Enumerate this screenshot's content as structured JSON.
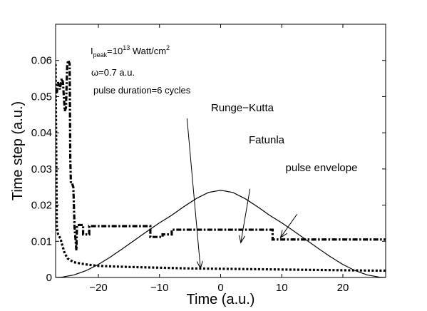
{
  "chart_data": {
    "type": "line",
    "xlabel": "Time (a.u.)",
    "ylabel": "Time step (a.u.)",
    "xlim": [
      -27,
      27
    ],
    "ylim": [
      0,
      0.07
    ],
    "xticks": [
      -20,
      -10,
      0,
      10,
      20
    ],
    "xtick_labels": [
      "−20",
      "−10",
      "0",
      "10",
      "20"
    ],
    "yticks": [
      0,
      0.01,
      0.02,
      0.03,
      0.04,
      0.05,
      0.06
    ],
    "ytick_labels": [
      "0",
      "0.01",
      "0.02",
      "0.03",
      "0.04",
      "0.05",
      "0.06"
    ],
    "grid": false,
    "annotations": {
      "intensity_prefix": "I",
      "intensity_sub": "peak",
      "intensity_eq": "=10",
      "intensity_exp": "13",
      "intensity_unit": " Watt/cm",
      "intensity_unit_exp": "2",
      "omega": "ω=0.7 a.u.",
      "duration": "pulse duration=6 cycles",
      "label_rk": "Runge−Kutta",
      "label_fatunla": "Fatunla",
      "label_envelope": "pulse envelope"
    },
    "arrows": [
      {
        "from": [
          -5.5,
          0.044
        ],
        "to": [
          -3.3,
          0.0025
        ]
      },
      {
        "from": [
          4.8,
          0.0245
        ],
        "to": [
          3.3,
          0.0096
        ]
      },
      {
        "from": [
          12.5,
          0.0175
        ],
        "to": [
          9.8,
          0.011
        ]
      }
    ],
    "series": [
      {
        "style": "solid",
        "x": [
          -27,
          -26,
          -24,
          -22,
          -20,
          -18,
          -16,
          -14,
          -12,
          -10,
          -8,
          -6,
          -4,
          -2,
          0,
          2,
          4,
          6,
          8,
          10,
          12,
          14,
          16,
          18,
          20,
          22,
          24,
          26,
          27
        ],
        "y": [
          0,
          8e-05,
          0.0007,
          0.0019,
          0.0036,
          0.0057,
          0.008,
          0.0104,
          0.0128,
          0.0151,
          0.0172,
          0.0196,
          0.0218,
          0.0235,
          0.0241,
          0.0235,
          0.0218,
          0.0196,
          0.0172,
          0.0151,
          0.0128,
          0.0104,
          0.008,
          0.0057,
          0.0036,
          0.0019,
          0.0007,
          8e-05,
          0
        ]
      },
      {
        "style": "dotted",
        "x": [
          -27,
          -26.8,
          -26.6,
          -26.4,
          -26.2,
          -26,
          -25.5,
          -25,
          -24,
          -22,
          -20,
          -15,
          -10,
          -5,
          0,
          5,
          10,
          15,
          20,
          25,
          27
        ],
        "y": [
          0.059,
          0.014,
          0.012,
          0.0113,
          0.0108,
          0.0095,
          0.0066,
          0.0052,
          0.0042,
          0.0036,
          0.0032,
          0.0029,
          0.0027,
          0.0025,
          0.0024,
          0.0023,
          0.0022,
          0.0021,
          0.002,
          0.0019,
          0.0019
        ]
      },
      {
        "style": "dashdot",
        "x": [
          -26.8,
          -26.6,
          -26.3,
          -26.0,
          -25.8,
          -25.5,
          -25.3,
          -25.1,
          -24.9,
          -24.7,
          -24.6,
          -24.5,
          -24.3,
          -24.1,
          -23.9,
          -23.6,
          -23.5,
          -22.5,
          -22.5,
          -21.5,
          -21.5,
          -11.5,
          -11.5,
          -9.5,
          -9.5,
          -8.0,
          -8.0,
          8.5,
          8.5,
          27
        ],
        "y": [
          0.051,
          0.054,
          0.052,
          0.055,
          0.054,
          0.046,
          0.047,
          0.059,
          0.06,
          0.059,
          0.033,
          0.026,
          0.026,
          0.025,
          0.014,
          0.0075,
          0.0145,
          0.0145,
          0.0119,
          0.0119,
          0.0142,
          0.0142,
          0.0112,
          0.0112,
          0.0119,
          0.0119,
          0.0132,
          0.0132,
          0.0105,
          0.0105
        ]
      }
    ]
  }
}
